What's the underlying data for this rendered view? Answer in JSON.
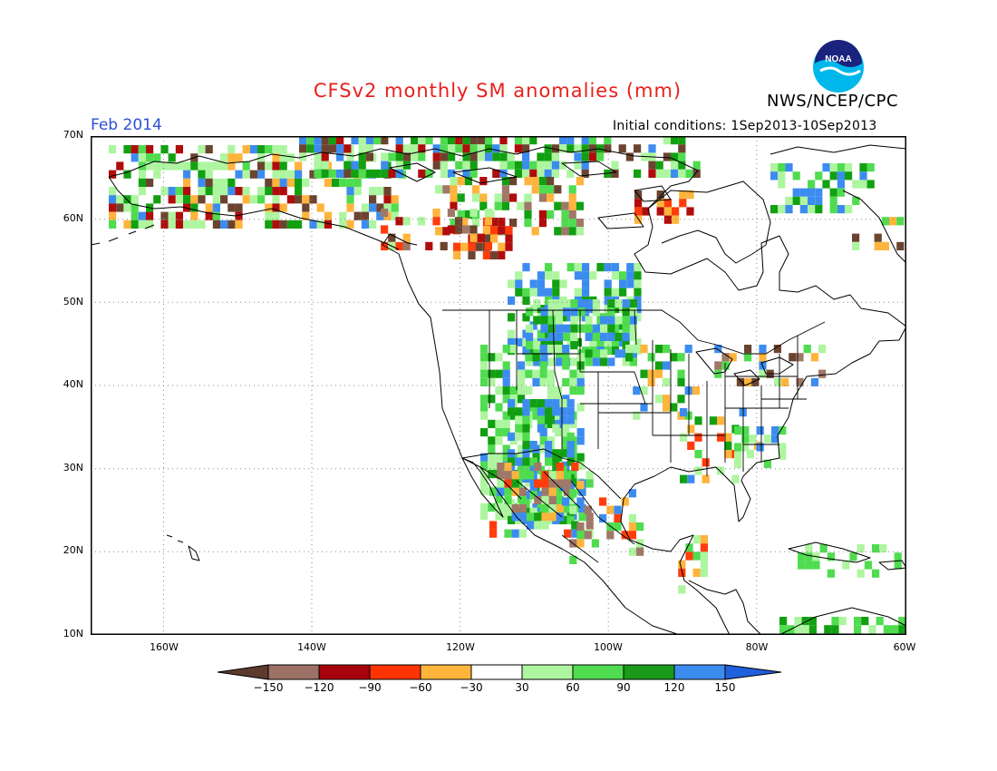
{
  "title": "CFSv2 monthly SM anomalies (mm)",
  "agency": "NWS/NCEP/CPC",
  "logo_text": "NOAA",
  "valid_month": "Feb 2014",
  "initial_conditions": "Initial conditions: 1Sep2013-10Sep2013",
  "map": {
    "lon_range": [
      -172,
      -60
    ],
    "lat_range": [
      10,
      70
    ],
    "lat_labels": [
      "70N",
      "60N",
      "50N",
      "40N",
      "30N",
      "20N",
      "10N"
    ],
    "lon_labels": [
      "160W",
      "140W",
      "120W",
      "100W",
      "80W",
      "60W"
    ],
    "grid_style": "dotted"
  },
  "colorbar": {
    "labels": [
      "-150",
      "-120",
      "-90",
      "-60",
      "-30",
      "30",
      "60",
      "90",
      "120",
      "150"
    ],
    "colors": [
      "#5c3a2e",
      "#9c7266",
      "#a8000d",
      "#ff3300",
      "#ffb43c",
      "#ffffff",
      "#aef5a0",
      "#4fdc4f",
      "#1a9a1a",
      "#3c8cf0",
      "#2060dc"
    ]
  },
  "colors": {
    "dark_brown": "#6b4430",
    "brown": "#a07868",
    "dark_red": "#b00c0c",
    "red": "#ff3c0a",
    "orange": "#ffb43c",
    "light_green": "#aef5a0",
    "green": "#4fdc4f",
    "dark_green": "#12a012",
    "blue": "#3c8cf0"
  }
}
